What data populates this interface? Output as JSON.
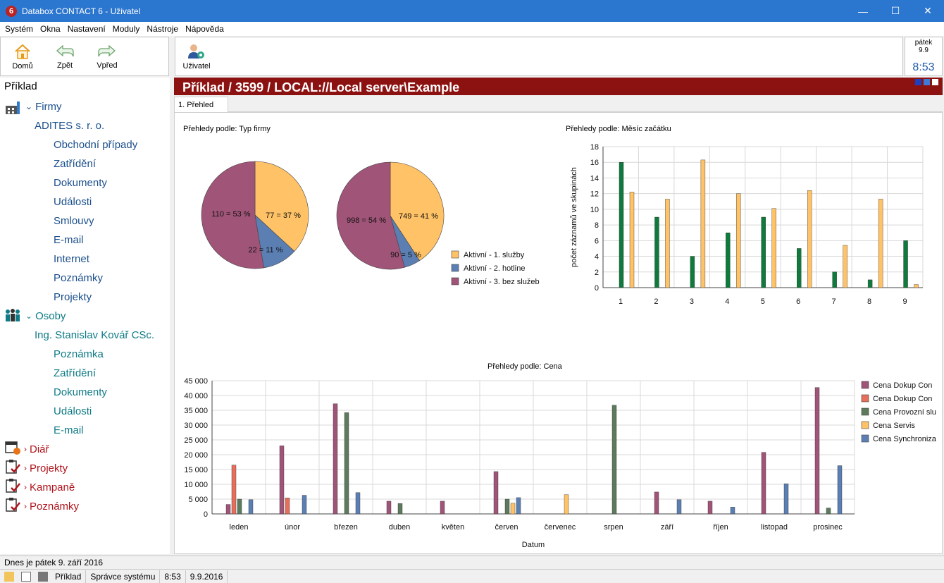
{
  "window": {
    "title": "Databox CONTACT 6 - Uživatel",
    "app_icon_glyph": "6",
    "minimize_glyph": "—",
    "maximize_glyph": "☐",
    "close_glyph": "✕"
  },
  "menu": [
    "Systém",
    "Okna",
    "Nastavení",
    "Moduly",
    "Nástroje",
    "Nápověda"
  ],
  "toolbar": {
    "home": "Domů",
    "back": "Zpět",
    "forward": "Vpřed",
    "user": "Uživatel"
  },
  "clock": {
    "day": "pátek",
    "date": "9.9",
    "time": "8:53"
  },
  "nav": {
    "root": "Příklad",
    "firmy": {
      "label": "Firmy",
      "company": "ADITES s. r. o.",
      "items": [
        "Obchodní případy",
        "Zatřídění",
        "Dokumenty",
        "Události",
        "Smlouvy",
        "E-mail",
        "Internet",
        "Poznámky",
        "Projekty"
      ]
    },
    "osoby": {
      "label": "Osoby",
      "person": "Ing. Stanislav Kovář CSc.",
      "items": [
        "Poznámka",
        "Zatřídění",
        "Dokumenty",
        "Události",
        "E-mail"
      ]
    },
    "other": [
      "Diář",
      "Projekty",
      "Kampaně",
      "Poznámky"
    ]
  },
  "content": {
    "header": "Příklad / 3599 / LOCAL://Local server\\Example",
    "tab": "1. Přehled",
    "pie_title": "Přehledy podle: Typ firmy",
    "bar1_title": "Přehledy podle: Měsíc začátku",
    "bar2_title": "Přehledy podle: Cena"
  },
  "colors": {
    "titlebar": "#2b76cf",
    "header": "#8c1111",
    "sluzby": "#ffc266",
    "hotline": "#5b7fb3",
    "bez": "#a05478",
    "green": "#0e7a3c",
    "orange": "#ffc266",
    "dokup1": "#a05478",
    "dokup2": "#e66e5a",
    "provozni": "#5d7a5d",
    "servis": "#ffc266",
    "synchro": "#5b7fb3"
  },
  "status": {
    "line1": "Dnes je pátek 9. září 2016",
    "cells": [
      "Příklad",
      "Správce systému",
      "8:53",
      "9.9.2016"
    ]
  },
  "chart_data": [
    {
      "type": "pie",
      "title": "Přehledy podle: Typ firmy",
      "slices": [
        {
          "name": "Aktivní - 1. služby",
          "value": 77,
          "label": "77 = 37 %"
        },
        {
          "name": "Aktivní - 2. hotline",
          "value": 22,
          "label": "22 = 11 %"
        },
        {
          "name": "Aktivní - 3. bez služeb",
          "value": 110,
          "label": "110 = 53 %"
        }
      ],
      "legend": "right"
    },
    {
      "type": "pie",
      "title": "",
      "slices": [
        {
          "name": "Aktivní - 1. služby",
          "value": 749,
          "label": "749 = 41 %"
        },
        {
          "name": "Aktivní - 2. hotline",
          "value": 90,
          "label": "90 = 5 %"
        },
        {
          "name": "Aktivní - 3. bez služeb",
          "value": 998,
          "label": "998 = 54 %"
        }
      ],
      "legend": "right"
    },
    {
      "type": "bar",
      "title": "Přehledy podle: Měsíc začátku",
      "ylabel": "počet záznamů ve skupinách",
      "xlabel": "",
      "categories": [
        "1",
        "2",
        "3",
        "4",
        "5",
        "6",
        "7",
        "8",
        "9"
      ],
      "ylim": [
        0,
        18
      ],
      "yticks": [
        "0",
        "2",
        "4",
        "6",
        "8",
        "10",
        "12",
        "14",
        "16",
        "18"
      ],
      "grid": true,
      "series": [
        {
          "values": [
            16,
            9,
            4,
            7,
            9,
            5,
            2,
            1,
            6
          ]
        },
        {
          "values": [
            12.2,
            11.3,
            16.3,
            12,
            10.1,
            12.4,
            5.4,
            11.3,
            0.4
          ]
        }
      ]
    },
    {
      "type": "bar",
      "title": "Přehledy podle: Cena",
      "xlabel": "Datum",
      "ylabel": "",
      "categories": [
        "leden",
        "únor",
        "březen",
        "duben",
        "květen",
        "červen",
        "červenec",
        "srpen",
        "září",
        "říjen",
        "listopad",
        "prosinec"
      ],
      "ylim": [
        0,
        45000
      ],
      "yticks": [
        "0",
        "5 000",
        "10 000",
        "15 000",
        "20 000",
        "25 000",
        "30 000",
        "35 000",
        "40 000",
        "45 000"
      ],
      "grid": true,
      "legend": "right",
      "series": [
        {
          "name": "Cena Dokup Con",
          "values": [
            3200,
            23000,
            37200,
            4300,
            4300,
            14300,
            0,
            0,
            7400,
            4300,
            20800,
            42700
          ]
        },
        {
          "name": "Cena Dokup Con",
          "values": [
            16500,
            5400,
            0,
            0,
            0,
            0,
            0,
            0,
            0,
            0,
            0,
            0
          ]
        },
        {
          "name": "Cena Provozní slu",
          "values": [
            5000,
            0,
            34200,
            3500,
            0,
            5000,
            0,
            36700,
            0,
            0,
            0,
            2000
          ]
        },
        {
          "name": "Cena Servis",
          "values": [
            0,
            0,
            0,
            0,
            0,
            3600,
            6500,
            0,
            0,
            0,
            0,
            0
          ]
        },
        {
          "name": "Cena Synchroniza",
          "values": [
            4800,
            6300,
            7200,
            0,
            0,
            5500,
            0,
            0,
            4800,
            2300,
            10200,
            16300
          ]
        }
      ]
    }
  ]
}
